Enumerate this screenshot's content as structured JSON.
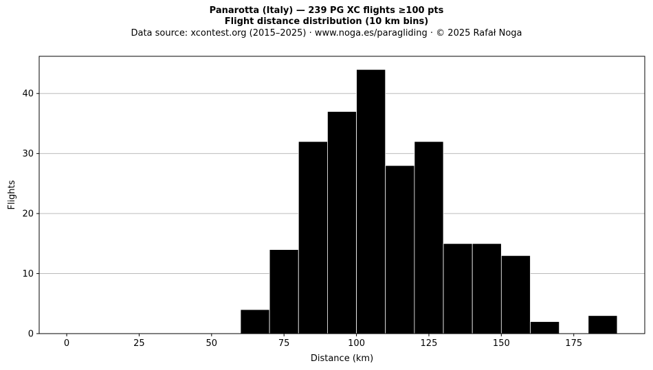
{
  "chart_data": {
    "type": "bar",
    "title": "Panarotta (Italy)  —  239 PG XC flights ≥100 pts",
    "subtitle": "Flight distance distribution (10 km bins)",
    "source_note": "Data source: xcontest.org (2015–2025)  ·  www.noga.es/paragliding  ·  © 2025 Rafał Noga",
    "xlabel": "Distance (km)",
    "ylabel": "Flights",
    "bin_width": 10,
    "bin_starts": [
      60,
      70,
      80,
      90,
      100,
      110,
      120,
      130,
      140,
      150,
      160,
      180
    ],
    "values": [
      4,
      14,
      32,
      37,
      44,
      28,
      32,
      15,
      15,
      13,
      2,
      3
    ],
    "xlim": [
      -9.5,
      199.5
    ],
    "ylim": [
      0,
      46.2
    ],
    "x_ticks": [
      0,
      25,
      50,
      75,
      100,
      125,
      150,
      175
    ],
    "y_ticks": [
      0,
      10,
      20,
      30,
      40
    ],
    "grid": "y-major",
    "legend": "none",
    "colors": {
      "bar_fill": "#000000",
      "bar_edge": "#ffffff",
      "grid": "#b0b0b0",
      "axis": "#000000"
    }
  }
}
